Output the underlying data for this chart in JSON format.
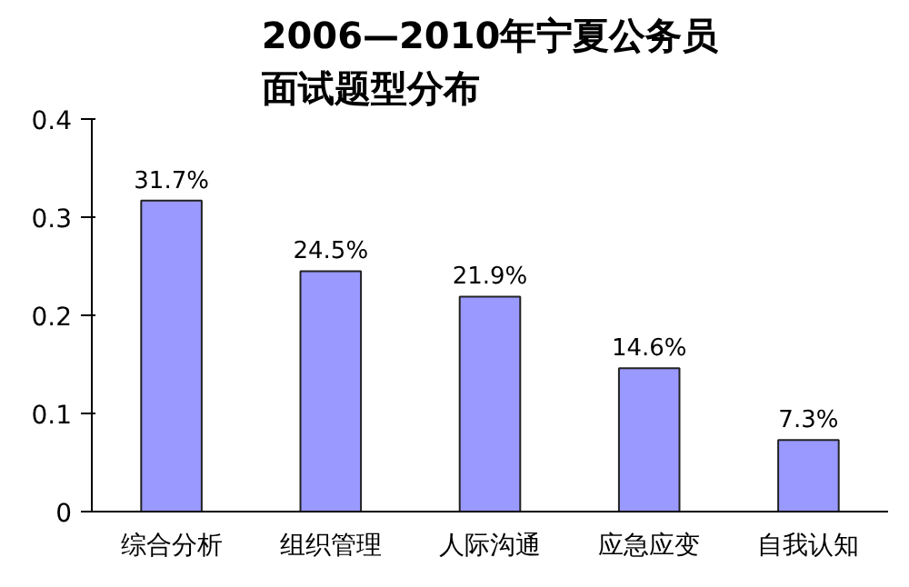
{
  "chart_data": {
    "type": "bar",
    "title": "2006—2010年宁夏公务员面试题型分布",
    "categories": [
      "综合分析",
      "组织管理",
      "人际沟通",
      "应急应变",
      "自我认知"
    ],
    "values": [
      0.317,
      0.245,
      0.219,
      0.146,
      0.073
    ],
    "value_labels": [
      "31.7%",
      "24.5%",
      "21.9%",
      "14.6%",
      "7.3%"
    ],
    "color": "#9999ff",
    "ylim": [
      0,
      0.4
    ],
    "yticks": [
      {
        "value": 0,
        "label": "0"
      },
      {
        "value": 0.1,
        "label": "0.1"
      },
      {
        "value": 0.2,
        "label": "0.2"
      },
      {
        "value": 0.3,
        "label": "0.3"
      },
      {
        "value": 0.4,
        "label": "0.4"
      }
    ],
    "grid": false
  }
}
